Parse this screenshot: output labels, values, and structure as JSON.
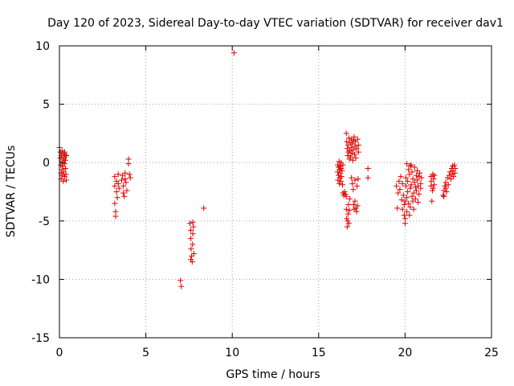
{
  "chart_data": {
    "type": "scatter",
    "title": "Day 120 of 2023, Sidereal Day-to-day VTEC variation (SDTVAR) for receiver dav1",
    "xlabel": "GPS time / hours",
    "ylabel": "SDTVAR / TECUs",
    "xlim": [
      0,
      25
    ],
    "ylim": [
      -15,
      10
    ],
    "xticks": [
      "0",
      "5",
      "10",
      "15",
      "20",
      "25"
    ],
    "yticks": [
      "-15",
      "-10",
      "-5",
      "0",
      "5",
      "10"
    ],
    "grid": true,
    "marker": "+",
    "marker_color": "#e00000",
    "series": [
      {
        "name": "SDTVAR",
        "points": [
          [
            0.0,
            1.3
          ],
          [
            0.05,
            0.9
          ],
          [
            0.05,
            0.4
          ],
          [
            0.08,
            -0.2
          ],
          [
            0.1,
            -0.9
          ],
          [
            0.1,
            -1.4
          ],
          [
            0.12,
            0.6
          ],
          [
            0.15,
            0.1
          ],
          [
            0.15,
            -0.6
          ],
          [
            0.18,
            -1.1
          ],
          [
            0.2,
            0.8
          ],
          [
            0.2,
            -0.3
          ],
          [
            0.22,
            -1.6
          ],
          [
            0.25,
            0.3
          ],
          [
            0.25,
            -0.8
          ],
          [
            0.28,
            0.5
          ],
          [
            0.3,
            -0.1
          ],
          [
            0.3,
            -1.2
          ],
          [
            0.32,
            0.7
          ],
          [
            0.35,
            -0.5
          ],
          [
            0.35,
            0.2
          ],
          [
            0.38,
            -1.0
          ],
          [
            0.4,
            0.6
          ],
          [
            0.4,
            -1.5
          ],
          [
            0.15,
            1.0
          ],
          [
            0.3,
            0.9
          ],
          [
            3.2,
            -1.2
          ],
          [
            3.2,
            -2.0
          ],
          [
            3.2,
            -3.5
          ],
          [
            3.25,
            -4.2
          ],
          [
            3.25,
            -4.6
          ],
          [
            3.3,
            -1.6
          ],
          [
            3.3,
            -2.5
          ],
          [
            3.35,
            -3.0
          ],
          [
            3.4,
            -1.0
          ],
          [
            3.4,
            -1.8
          ],
          [
            3.45,
            -2.2
          ],
          [
            3.6,
            -1.5
          ],
          [
            3.65,
            -1.1
          ],
          [
            3.7,
            -2.0
          ],
          [
            3.7,
            -2.6
          ],
          [
            3.75,
            -2.9
          ],
          [
            3.8,
            -1.4
          ],
          [
            3.8,
            -0.9
          ],
          [
            3.85,
            -1.7
          ],
          [
            3.9,
            -2.4
          ],
          [
            4.0,
            0.3
          ],
          [
            4.0,
            -0.1
          ],
          [
            4.05,
            -1.0
          ],
          [
            4.1,
            -1.3
          ],
          [
            7.0,
            -10.1
          ],
          [
            7.05,
            -10.6
          ],
          [
            7.55,
            -5.2
          ],
          [
            7.6,
            -5.8
          ],
          [
            7.6,
            -6.5
          ],
          [
            7.62,
            -7.4
          ],
          [
            7.65,
            -8.0
          ],
          [
            7.68,
            -8.5
          ],
          [
            7.7,
            -7.0
          ],
          [
            7.72,
            -6.1
          ],
          [
            7.75,
            -5.5
          ],
          [
            7.78,
            -7.8
          ],
          [
            7.6,
            -8.3
          ],
          [
            7.72,
            -5.1
          ],
          [
            8.35,
            -3.9
          ],
          [
            10.1,
            9.4
          ],
          [
            16.1,
            -0.2
          ],
          [
            16.1,
            -0.8
          ],
          [
            16.12,
            -1.5
          ],
          [
            16.15,
            -0.4
          ],
          [
            16.15,
            -1.1
          ],
          [
            16.18,
            0.1
          ],
          [
            16.2,
            -0.6
          ],
          [
            16.2,
            -1.8
          ],
          [
            16.22,
            -1.3
          ],
          [
            16.25,
            -0.3
          ],
          [
            16.25,
            -0.9
          ],
          [
            16.28,
            -1.6
          ],
          [
            16.3,
            0.0
          ],
          [
            16.3,
            -0.5
          ],
          [
            16.32,
            -1.2
          ],
          [
            16.35,
            -0.7
          ],
          [
            16.38,
            -1.9
          ],
          [
            16.4,
            -2.6
          ],
          [
            16.4,
            -0.2
          ],
          [
            16.45,
            -2.8
          ],
          [
            16.5,
            -2.5
          ],
          [
            16.55,
            -2.7
          ],
          [
            16.6,
            -2.9
          ],
          [
            16.6,
            -4.0
          ],
          [
            16.62,
            -4.8
          ],
          [
            16.65,
            -5.5
          ],
          [
            16.68,
            -5.0
          ],
          [
            16.7,
            -4.4
          ],
          [
            16.72,
            -3.6
          ],
          [
            16.75,
            -5.2
          ],
          [
            16.78,
            -4.1
          ],
          [
            16.8,
            -3.1
          ],
          [
            16.6,
            2.5
          ],
          [
            16.62,
            1.8
          ],
          [
            16.65,
            1.2
          ],
          [
            16.68,
            0.6
          ],
          [
            16.7,
            1.5
          ],
          [
            16.72,
            0.9
          ],
          [
            16.75,
            2.1
          ],
          [
            16.78,
            0.3
          ],
          [
            16.8,
            1.0
          ],
          [
            16.82,
            1.7
          ],
          [
            16.85,
            0.5
          ],
          [
            16.88,
            1.3
          ],
          [
            16.9,
            2.0
          ],
          [
            16.92,
            0.8
          ],
          [
            16.95,
            1.6
          ],
          [
            16.98,
            0.2
          ],
          [
            17.0,
            1.1
          ],
          [
            17.02,
            1.9
          ],
          [
            17.05,
            2.2
          ],
          [
            17.08,
            0.7
          ],
          [
            17.1,
            1.4
          ],
          [
            17.12,
            1.8
          ],
          [
            17.15,
            0.4
          ],
          [
            17.2,
            1.2
          ],
          [
            17.25,
            2.0
          ],
          [
            17.3,
            1.5
          ],
          [
            17.3,
            0.9
          ],
          [
            16.9,
            -1.3
          ],
          [
            16.95,
            -1.8
          ],
          [
            17.0,
            -2.3
          ],
          [
            17.02,
            -3.6
          ],
          [
            17.05,
            -4.0
          ],
          [
            17.1,
            -3.3
          ],
          [
            17.1,
            -1.5
          ],
          [
            17.15,
            -3.9
          ],
          [
            17.2,
            -4.2
          ],
          [
            17.22,
            -2.0
          ],
          [
            17.25,
            -3.7
          ],
          [
            17.28,
            -1.4
          ],
          [
            17.85,
            -0.5
          ],
          [
            17.85,
            -1.3
          ],
          [
            19.5,
            -2.0
          ],
          [
            19.55,
            -3.9
          ],
          [
            19.6,
            -2.6
          ],
          [
            19.65,
            -1.6
          ],
          [
            19.7,
            -2.3
          ],
          [
            19.75,
            -1.2
          ],
          [
            19.8,
            -3.2
          ],
          [
            19.85,
            -1.8
          ],
          [
            19.9,
            -2.8
          ],
          [
            19.95,
            -4.5
          ],
          [
            19.95,
            -3.6
          ],
          [
            20.0,
            -5.2
          ],
          [
            20.0,
            -4.8
          ],
          [
            20.05,
            -2.0
          ],
          [
            20.05,
            -1.3
          ],
          [
            20.1,
            -3.0
          ],
          [
            20.1,
            -4.2
          ],
          [
            20.15,
            -1.6
          ],
          [
            20.15,
            -2.5
          ],
          [
            20.2,
            -3.5
          ],
          [
            20.2,
            -0.6
          ],
          [
            20.25,
            -1.0
          ],
          [
            20.25,
            -4.5
          ],
          [
            20.3,
            -2.2
          ],
          [
            20.3,
            -3.8
          ],
          [
            20.35,
            -0.2
          ],
          [
            20.35,
            -1.9
          ],
          [
            20.4,
            -2.9
          ],
          [
            20.4,
            -0.8
          ],
          [
            20.45,
            -3.3
          ],
          [
            20.45,
            -1.4
          ],
          [
            20.5,
            -2.6
          ],
          [
            20.5,
            -4.0
          ],
          [
            20.55,
            -0.4
          ],
          [
            20.55,
            -1.7
          ],
          [
            20.6,
            -2.1
          ],
          [
            20.6,
            -3.1
          ],
          [
            20.65,
            -1.1
          ],
          [
            20.65,
            -2.4
          ],
          [
            20.7,
            -1.5
          ],
          [
            20.7,
            -0.7
          ],
          [
            20.75,
            -2.0
          ],
          [
            20.75,
            -3.4
          ],
          [
            20.8,
            -1.2
          ],
          [
            20.8,
            -2.7
          ],
          [
            20.85,
            -0.9
          ],
          [
            20.9,
            -1.8
          ],
          [
            20.9,
            -2.2
          ],
          [
            20.95,
            -1.3
          ],
          [
            20.1,
            -0.1
          ],
          [
            20.3,
            -0.3
          ],
          [
            19.85,
            -4.0
          ],
          [
            20.0,
            -3.3
          ],
          [
            21.5,
            -1.2
          ],
          [
            21.5,
            -2.0
          ],
          [
            21.52,
            -1.6
          ],
          [
            21.55,
            -3.3
          ],
          [
            21.58,
            -2.4
          ],
          [
            21.6,
            -1.0
          ],
          [
            21.62,
            -2.2
          ],
          [
            21.65,
            -1.4
          ],
          [
            21.68,
            -1.9
          ],
          [
            21.7,
            -1.1
          ],
          [
            22.2,
            -2.8
          ],
          [
            22.25,
            -2.4
          ],
          [
            22.3,
            -2.0
          ],
          [
            22.35,
            -1.7
          ],
          [
            22.4,
            -2.5
          ],
          [
            22.45,
            -1.3
          ],
          [
            22.5,
            -1.9
          ],
          [
            22.55,
            -1.1
          ],
          [
            22.6,
            -0.8
          ],
          [
            22.65,
            -1.4
          ],
          [
            22.7,
            -0.5
          ],
          [
            22.72,
            -1.0
          ],
          [
            22.75,
            -0.3
          ],
          [
            22.78,
            -0.7
          ],
          [
            22.8,
            -1.2
          ],
          [
            22.85,
            -0.2
          ],
          [
            22.88,
            -0.9
          ],
          [
            22.9,
            -0.5
          ],
          [
            22.25,
            -2.9
          ],
          [
            22.35,
            -2.2
          ]
        ]
      }
    ]
  }
}
